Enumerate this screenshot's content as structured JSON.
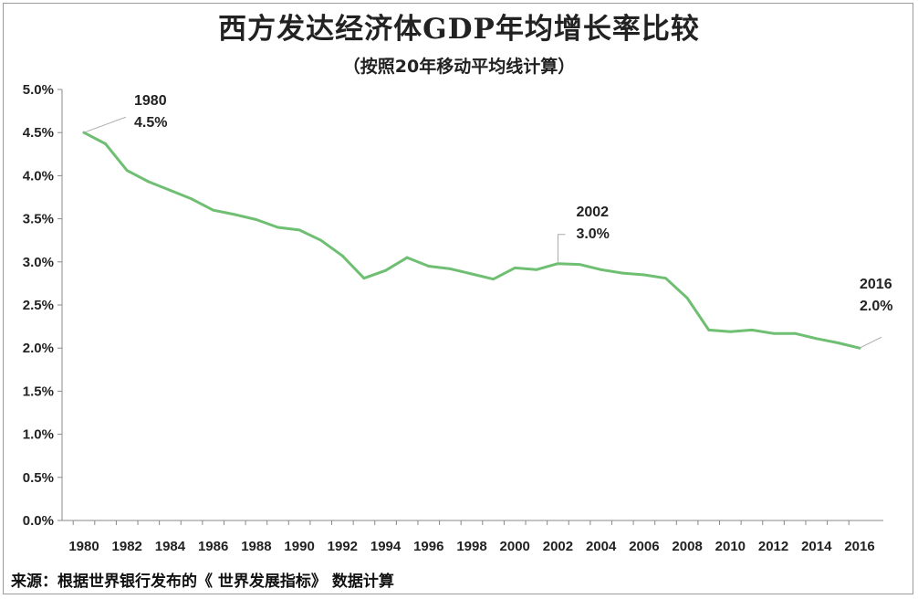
{
  "chart_data": {
    "type": "line",
    "title": "西方发达经济体GDP年均增长率比较",
    "subtitle": "（按照20年移动平均线计算）",
    "source": "来源：根据世界银行发布的《 世界发展指标》 数据计算",
    "xlabel": "",
    "ylabel": "",
    "ylim": [
      0,
      5
    ],
    "y_ticks": [
      "0.0%",
      "0.5%",
      "1.0%",
      "1.5%",
      "2.0%",
      "2.5%",
      "3.0%",
      "3.5%",
      "4.0%",
      "4.5%",
      "5.0%"
    ],
    "x_ticks": [
      "1980",
      "1982",
      "1984",
      "1986",
      "1988",
      "1990",
      "1992",
      "1994",
      "1996",
      "1998",
      "2000",
      "2002",
      "2004",
      "2006",
      "2008",
      "2010",
      "2012",
      "2014",
      "2016"
    ],
    "grid": false,
    "line_color": "#6fbf73",
    "series": [
      {
        "x": [
          1980,
          1981,
          1982,
          1983,
          1984,
          1985,
          1986,
          1987,
          1988,
          1989,
          1990,
          1991,
          1992,
          1993,
          1994,
          1995,
          1996,
          1997,
          1998,
          1999,
          2000,
          2001,
          2002,
          2003,
          2004,
          2005,
          2006,
          2007,
          2008,
          2009,
          2010,
          2011,
          2012,
          2013,
          2014,
          2015,
          2016
        ],
        "values": [
          4.5,
          4.37,
          4.06,
          3.93,
          3.83,
          3.73,
          3.6,
          3.55,
          3.49,
          3.4,
          3.37,
          3.25,
          3.07,
          2.81,
          2.9,
          3.05,
          2.95,
          2.92,
          2.86,
          2.8,
          2.93,
          2.91,
          2.98,
          2.97,
          2.91,
          2.87,
          2.85,
          2.81,
          2.58,
          2.21,
          2.19,
          2.21,
          2.17,
          2.17,
          2.11,
          2.06,
          2.0
        ]
      }
    ],
    "annotations": [
      {
        "year": "1980",
        "value": "4.5%"
      },
      {
        "year": "2002",
        "value": "3.0%"
      },
      {
        "year": "2016",
        "value": "2.0%"
      }
    ]
  }
}
